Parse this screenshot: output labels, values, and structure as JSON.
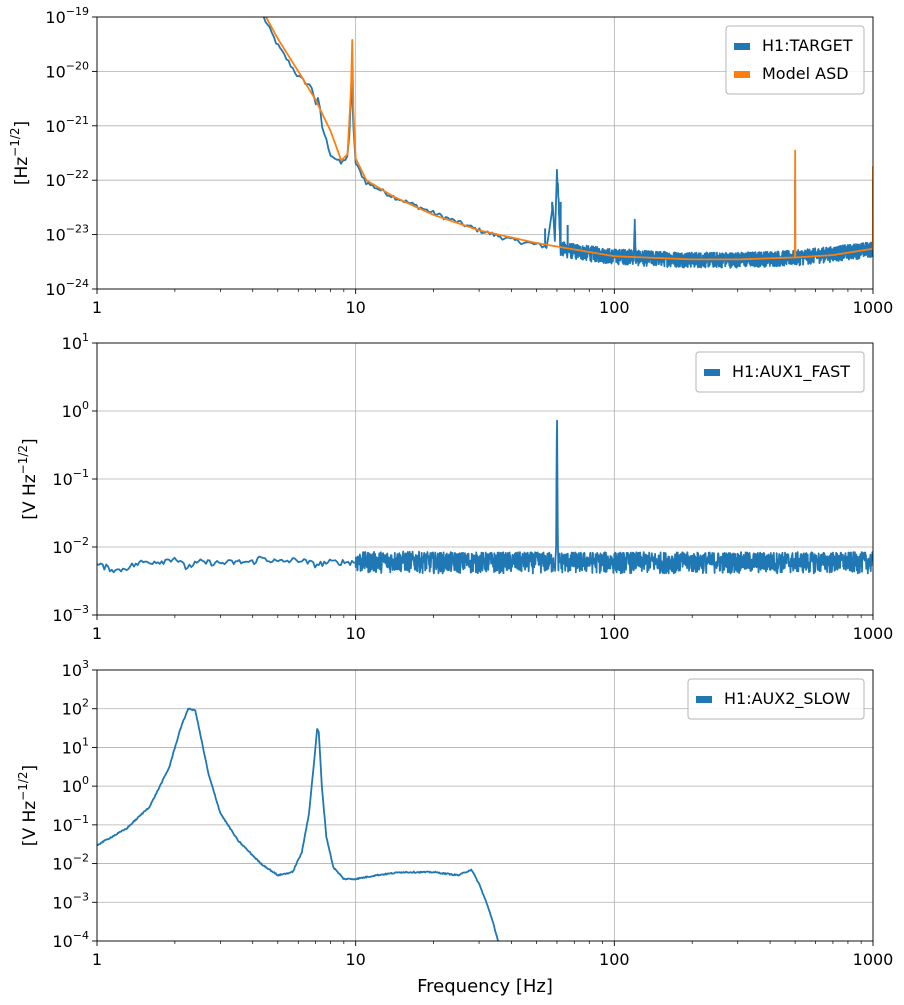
{
  "chart_data": [
    {
      "type": "line",
      "xscale": "log",
      "yscale": "log",
      "xlim": [
        1,
        1000
      ],
      "ylim": [
        1e-24,
        1e-19
      ],
      "xlabel": "",
      "ylabel": "[Hz^-1/2]",
      "ylabel_base": "[Hz",
      "ylabel_sup": "−1/2",
      "ylabel_end": "]",
      "grid": true,
      "legend_position": "top-right",
      "xticks": [
        1,
        10,
        100,
        1000
      ],
      "xtick_labels": [
        "1",
        "10",
        "100",
        "1000"
      ],
      "yticks": [
        1e-24,
        1e-23,
        1e-22,
        1e-21,
        1e-20,
        1e-19
      ],
      "ytick_exponents": [
        "−24",
        "−23",
        "−22",
        "−21",
        "−20",
        "−19"
      ],
      "series": [
        {
          "name": "H1:TARGET",
          "color": "#1f77b4",
          "x": [
            4.4,
            5.0,
            6.0,
            6.8,
            7.0,
            7.2,
            7.4,
            8.0,
            8.8,
            9.4,
            9.65,
            9.8,
            10.0,
            11.0,
            14.0,
            20.0,
            30.0,
            40.0,
            55.0,
            58.0,
            59.0,
            60.0,
            61.0,
            62.0,
            70.0,
            100.0,
            119.0,
            120.0,
            121.0,
            200.0,
            300.0,
            500.0,
            700.0,
            1000.0
          ],
          "y": [
            1e-19,
            3e-20,
            8e-21,
            5e-21,
            2.5e-21,
            3.2e-21,
            1e-21,
            3e-22,
            2e-22,
            3e-22,
            8e-21,
            1e-21,
            2e-22,
            9e-23,
            5e-23,
            2.5e-23,
            1.2e-23,
            8e-24,
            6e-24,
            4e-23,
            6e-24,
            1.6e-22,
            3e-23,
            5.5e-24,
            5e-24,
            4e-24,
            4e-24,
            1.6e-23,
            3.8e-24,
            3.5e-24,
            3.5e-24,
            3.8e-24,
            4.5e-24,
            5.5e-24
          ],
          "spikes": [
            {
              "x": 54.0,
              "y": 1.3e-23
            },
            {
              "x": 57.5,
              "y": 4e-23
            },
            {
              "x": 60.0,
              "y": 1.6e-22
            },
            {
              "x": 62.0,
              "y": 4e-23
            },
            {
              "x": 66.0,
              "y": 1.5e-23
            },
            {
              "x": 120.0,
              "y": 1.6e-23
            },
            {
              "x": 500.0,
              "y": 1e-22
            },
            {
              "x": 1000.0,
              "y": 1e-22
            }
          ],
          "noise_band": {
            "from": 60,
            "to": 1000,
            "low_factor": 0.7,
            "high_factor": 1.35
          }
        },
        {
          "name": "Model ASD",
          "color": "#ff7f0e",
          "x": [
            4.5,
            5.0,
            6.0,
            7.0,
            8.0,
            8.8,
            9.3,
            9.6,
            9.7,
            9.8,
            10.0,
            11.0,
            14.0,
            20.0,
            30.0,
            50.0,
            100.0,
            200.0,
            300.0,
            499.0,
            500.0,
            501.0,
            700.0,
            999.0,
            1000.0
          ],
          "y": [
            1e-19,
            4e-20,
            1e-20,
            3e-21,
            8e-22,
            2.3e-22,
            3e-22,
            5e-21,
            3.8e-20,
            2e-21,
            2.5e-22,
            1e-22,
            5e-23,
            2.3e-23,
            1.2e-23,
            7e-24,
            4e-24,
            3.5e-24,
            3.5e-24,
            3.8e-24,
            3.5e-22,
            3.8e-24,
            4.2e-24,
            5.5e-24,
            1.8e-22
          ]
        }
      ]
    },
    {
      "type": "line",
      "xscale": "log",
      "yscale": "log",
      "xlim": [
        1,
        1000
      ],
      "ylim": [
        0.001,
        10
      ],
      "xlabel": "",
      "ylabel": "[V Hz^-1/2]",
      "ylabel_base": "[V Hz",
      "ylabel_sup": "−1/2",
      "ylabel_end": "]",
      "grid": true,
      "legend_position": "top-right",
      "xticks": [
        1,
        10,
        100,
        1000
      ],
      "xtick_labels": [
        "1",
        "10",
        "100",
        "1000"
      ],
      "yticks": [
        0.001,
        0.01,
        0.1,
        1,
        10
      ],
      "ytick_exponents": [
        "−3",
        "−2",
        "−1",
        "0",
        "1"
      ],
      "series": [
        {
          "name": "H1:AUX1_FAST",
          "color": "#1f77b4",
          "x": [
            1.0,
            1.2,
            1.5,
            1.8,
            2.0,
            2.2,
            2.5,
            3.0,
            3.5,
            4.0,
            4.3,
            5.0,
            6.0,
            7.0,
            8.0,
            10.0,
            15.0,
            20.0,
            30.0,
            50.0,
            59.5,
            60.0,
            60.5,
            80.0,
            100.0,
            200.0,
            500.0,
            1000.0
          ],
          "y": [
            0.0055,
            0.0045,
            0.006,
            0.0062,
            0.007,
            0.005,
            0.006,
            0.0058,
            0.006,
            0.006,
            0.007,
            0.006,
            0.0065,
            0.0055,
            0.006,
            0.006,
            0.0062,
            0.006,
            0.006,
            0.006,
            0.006,
            1.5,
            0.006,
            0.006,
            0.006,
            0.006,
            0.006,
            0.006
          ],
          "noise_band": {
            "from": 10,
            "to": 1000,
            "low_factor": 0.68,
            "high_factor": 1.4
          }
        }
      ]
    },
    {
      "type": "line",
      "xscale": "log",
      "yscale": "log",
      "xlim": [
        1,
        1000
      ],
      "ylim": [
        0.0001,
        1000
      ],
      "xlabel": "Frequency [Hz]",
      "ylabel": "[V Hz^-1/2]",
      "ylabel_base": "[V Hz",
      "ylabel_sup": "−1/2",
      "ylabel_end": "]",
      "grid": true,
      "legend_position": "top-right",
      "xticks": [
        1,
        10,
        100,
        1000
      ],
      "xtick_labels": [
        "1",
        "10",
        "100",
        "1000"
      ],
      "yticks": [
        0.0001,
        0.001,
        0.01,
        0.1,
        1,
        10,
        100,
        1000
      ],
      "ytick_exponents": [
        "−4",
        "−3",
        "−2",
        "−1",
        "0",
        "1",
        "2",
        "3"
      ],
      "series": [
        {
          "name": "H1:AUX2_SLOW",
          "color": "#1f77b4",
          "x": [
            1.0,
            1.3,
            1.6,
            1.9,
            2.1,
            2.25,
            2.4,
            2.7,
            3.0,
            3.5,
            4.3,
            5.0,
            5.7,
            6.2,
            6.6,
            6.9,
            7.1,
            7.2,
            7.4,
            7.7,
            8.2,
            9.0,
            10.0,
            12.0,
            15.0,
            20.0,
            25.0,
            28.0,
            30.0,
            32.0,
            34.0,
            35.5
          ],
          "y": [
            0.03,
            0.08,
            0.3,
            3,
            30,
            100,
            90,
            2,
            0.2,
            0.04,
            0.01,
            0.005,
            0.006,
            0.02,
            0.2,
            4,
            30,
            25,
            1,
            0.05,
            0.008,
            0.004,
            0.004,
            0.005,
            0.006,
            0.006,
            0.005,
            0.007,
            0.003,
            0.001,
            0.0003,
            0.0001
          ]
        }
      ]
    }
  ]
}
